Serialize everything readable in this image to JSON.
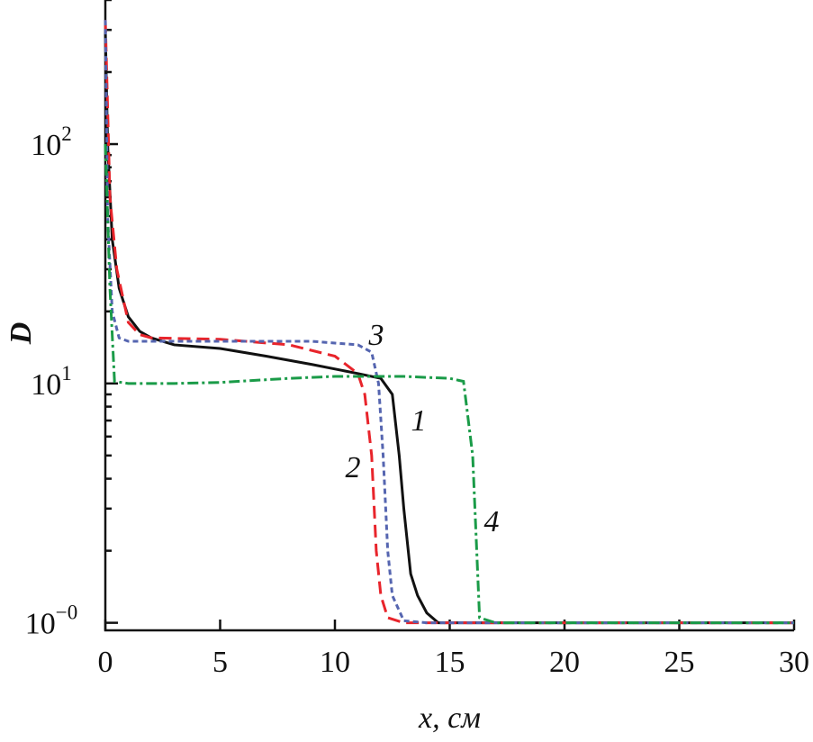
{
  "chart_data": {
    "type": "line",
    "x_label": "x, см",
    "y_label": "D",
    "xlim": [
      0,
      30
    ],
    "xticks": [
      0,
      5,
      10,
      15,
      20,
      25,
      30
    ],
    "ylim": [
      0.93,
      400
    ],
    "log_y": true,
    "yticks": [
      {
        "value": 1,
        "label": "10",
        "sup": "−0"
      },
      {
        "value": 10,
        "label": "10",
        "sup": "1"
      },
      {
        "value": 100,
        "label": "10",
        "sup": "2"
      }
    ],
    "minor_yticks": [
      2,
      3,
      4,
      5,
      6,
      7,
      8,
      9,
      20,
      30,
      40,
      50,
      60,
      70,
      80,
      90,
      200,
      300,
      400
    ],
    "series": [
      {
        "name": "1",
        "color": "#111111",
        "dash": "none",
        "x": [
          0,
          0.1,
          0.3,
          0.6,
          1,
          1.5,
          2,
          3,
          5,
          7,
          9,
          11,
          12,
          12.5,
          12.8,
          13,
          13.3,
          13.6,
          14,
          14.5,
          15,
          30
        ],
        "values": [
          300,
          100,
          40,
          25,
          19,
          16.5,
          15.5,
          14.5,
          14,
          13,
          12,
          11,
          10.5,
          9,
          5,
          3,
          1.6,
          1.3,
          1.1,
          1.0,
          1,
          1
        ]
      },
      {
        "name": "2",
        "color": "#e8242b",
        "dash": "14 7",
        "x": [
          0,
          0.2,
          0.5,
          1,
          1.5,
          2,
          5,
          8,
          10,
          11,
          11.3,
          11.6,
          11.8,
          12,
          12.3,
          13,
          30
        ],
        "values": [
          330,
          60,
          30,
          18,
          16,
          15.5,
          15.3,
          14.5,
          13,
          11,
          9,
          5,
          2,
          1.3,
          1.05,
          1,
          1
        ]
      },
      {
        "name": "3",
        "color": "#5565b0",
        "dash": "6 4",
        "x": [
          0,
          0.1,
          0.3,
          0.6,
          1,
          5,
          9,
          11,
          11.6,
          11.9,
          12.1,
          12.3,
          12.5,
          13,
          14,
          30
        ],
        "values": [
          330,
          50,
          20,
          15.5,
          15,
          15,
          15,
          14.5,
          13.5,
          10,
          5,
          2,
          1.3,
          1.02,
          1,
          1
        ]
      },
      {
        "name": "4",
        "color": "#1a9b48",
        "dash": "12 4 3 4",
        "x": [
          0,
          0.2,
          0.4,
          1,
          3,
          5,
          8,
          10,
          13,
          15,
          15.6,
          16,
          16.3,
          17,
          30
        ],
        "values": [
          100,
          25,
          10.2,
          10,
          10,
          10.1,
          10.5,
          10.7,
          10.7,
          10.5,
          10.2,
          5,
          1.05,
          1,
          1
        ]
      }
    ]
  }
}
